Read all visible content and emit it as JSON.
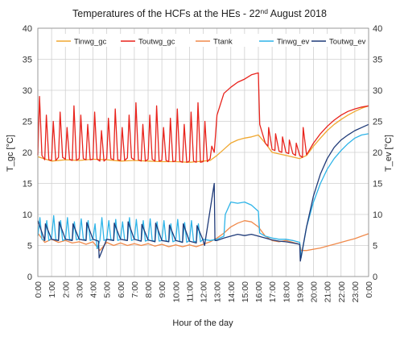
{
  "chart_data": {
    "type": "line",
    "title": "Temperatures of the HCFs at the HEs - 22",
    "title_sup": "nd",
    "title_tail": " August 2018",
    "xlabel": "Hour of the day",
    "ylabel_left": "T_gc [°C]",
    "ylabel_right": "T_ev [°C]",
    "xlim": [
      0,
      24
    ],
    "ylim": [
      0,
      40
    ],
    "y_right_lim": [
      0,
      40
    ],
    "y_ticks": [
      "0",
      "5",
      "10",
      "15",
      "20",
      "25",
      "30",
      "35",
      "40"
    ],
    "y_right_ticks": [
      "0",
      "5",
      "10",
      "15",
      "20",
      "25",
      "30",
      "35",
      "40"
    ],
    "x_ticks": [
      "0:00",
      "1:00",
      "2:00",
      "3:00",
      "4:00",
      "5:00",
      "6:00",
      "7:00",
      "8:00",
      "9:00",
      "10:00",
      "11:00",
      "12:00",
      "13:00",
      "14:00",
      "15:00",
      "16:00",
      "17:00",
      "18:00",
      "19:00",
      "20:00",
      "21:00",
      "22:00",
      "23:00",
      "0:00"
    ],
    "grid": true,
    "legend_position": "top",
    "series": [
      {
        "name": "Tinwg_gc",
        "color": "#f0a830",
        "axis": "left",
        "x": [
          0,
          1,
          2,
          3,
          4,
          5,
          6,
          7,
          8,
          9,
          10,
          11,
          12,
          12.5,
          13,
          13.5,
          14,
          14.5,
          15,
          15.5,
          16,
          16.5,
          17,
          18,
          19,
          19.5,
          20,
          20.5,
          21,
          21.5,
          22,
          22.5,
          23,
          23.5,
          24
        ],
        "y": [
          19.3,
          18.6,
          18.8,
          18.7,
          18.9,
          18.8,
          18.6,
          18.7,
          18.6,
          18.5,
          18.5,
          18.4,
          18.6,
          18.7,
          19.5,
          20.5,
          21.5,
          22.0,
          22.3,
          22.5,
          22.8,
          21.5,
          20.0,
          19.5,
          19.0,
          19.5,
          21.0,
          22.3,
          23.5,
          24.5,
          25.3,
          26.0,
          26.6,
          27.1,
          27.5
        ]
      },
      {
        "name": "Toutwg_gc",
        "color": "#e8231c",
        "axis": "left",
        "x": [
          0,
          0.12,
          0.3,
          0.5,
          0.62,
          0.8,
          1,
          1.12,
          1.3,
          1.5,
          1.62,
          1.8,
          2,
          2.12,
          2.3,
          2.5,
          2.62,
          2.8,
          3,
          3.12,
          3.3,
          3.5,
          3.62,
          3.8,
          4,
          4.12,
          4.3,
          4.5,
          4.62,
          4.8,
          5,
          5.12,
          5.3,
          5.5,
          5.62,
          5.8,
          6,
          6.12,
          6.3,
          6.5,
          6.62,
          6.8,
          7,
          7.12,
          7.3,
          7.5,
          7.62,
          7.8,
          8,
          8.12,
          8.3,
          8.5,
          8.62,
          8.8,
          9,
          9.12,
          9.3,
          9.5,
          9.62,
          9.8,
          10,
          10.12,
          10.3,
          10.5,
          10.62,
          10.8,
          11,
          11.12,
          11.3,
          11.5,
          11.62,
          11.8,
          12,
          12.12,
          12.3,
          12.5,
          12.62,
          12.8,
          13,
          13.5,
          14,
          14.5,
          15,
          15.5,
          16,
          16.1,
          16.5,
          16.7,
          16.75,
          17,
          17.2,
          17.25,
          17.5,
          17.7,
          17.75,
          18,
          18.2,
          18.25,
          18.5,
          18.7,
          18.75,
          19,
          19.2,
          19.25,
          19.5,
          20,
          20.5,
          21,
          21.5,
          22,
          22.5,
          23,
          23.5,
          24
        ],
        "y": [
          19.5,
          29,
          19.5,
          18.8,
          26,
          18.8,
          18.7,
          25,
          18.7,
          19.2,
          26.5,
          19.2,
          18.9,
          24,
          18.9,
          18.7,
          27.5,
          18.7,
          19,
          26,
          19,
          18.8,
          24.5,
          18.8,
          18.9,
          26.5,
          18.9,
          18.6,
          23.5,
          18.6,
          19,
          25.5,
          19,
          18.8,
          27,
          18.8,
          18.7,
          24,
          18.7,
          19.1,
          26,
          19.1,
          18.8,
          28,
          18.8,
          18.6,
          24.5,
          18.6,
          18.9,
          26,
          18.9,
          18.6,
          27.5,
          18.6,
          18.7,
          24,
          18.7,
          18.5,
          25.5,
          18.5,
          18.6,
          27,
          18.6,
          18.4,
          24.5,
          18.4,
          18.6,
          26.5,
          18.6,
          18.4,
          28,
          18.4,
          18.5,
          25,
          18.5,
          19,
          21,
          20,
          26,
          29.5,
          30.5,
          31.3,
          31.8,
          32.5,
          32.8,
          24.5,
          21.5,
          21.0,
          24.0,
          20.5,
          20.3,
          23.0,
          20.2,
          20.0,
          22.5,
          20.0,
          19.8,
          22.0,
          19.8,
          19.5,
          21.5,
          19.5,
          19.2,
          24.0,
          19.6,
          21.5,
          23.0,
          24.2,
          25.2,
          26.0,
          26.6,
          27.0,
          27.3,
          27.5
        ]
      },
      {
        "name": "Ttank",
        "color": "#f08a4b",
        "axis": "right",
        "x": [
          0,
          0.5,
          1,
          1.5,
          2,
          2.5,
          3,
          3.5,
          4,
          4.5,
          5,
          5.5,
          6,
          6.5,
          7,
          7.5,
          8,
          8.5,
          9,
          9.5,
          10,
          10.5,
          11,
          11.5,
          12,
          12.5,
          13,
          13.5,
          14,
          14.5,
          15,
          15.5,
          16,
          16.5,
          17,
          17.5,
          18,
          18.5,
          19,
          19.1,
          19.5,
          20,
          20.5,
          21,
          21.5,
          22,
          22.5,
          23,
          23.5,
          24
        ],
        "y": [
          7.0,
          5.5,
          6.0,
          5.5,
          5.8,
          5.4,
          5.6,
          5.2,
          5.6,
          4.2,
          5.5,
          5.0,
          5.4,
          5.0,
          5.3,
          5.0,
          5.3,
          4.9,
          5.2,
          4.8,
          5.1,
          4.8,
          5.1,
          4.8,
          5.2,
          5.6,
          6.2,
          7.0,
          8.0,
          8.6,
          9.0,
          8.8,
          8.0,
          6.5,
          5.8,
          5.6,
          5.8,
          5.5,
          5.2,
          4.2,
          4.2,
          4.4,
          4.6,
          4.9,
          5.2,
          5.5,
          5.8,
          6.1,
          6.5,
          6.9
        ]
      },
      {
        "name": "Tinwg_ev",
        "color": "#2eb4e8",
        "axis": "right",
        "x": [
          0,
          0.15,
          0.3,
          0.5,
          0.65,
          0.8,
          1,
          1.15,
          1.3,
          1.5,
          1.65,
          1.8,
          2,
          2.15,
          2.3,
          2.5,
          2.65,
          2.8,
          3,
          3.15,
          3.3,
          3.5,
          3.65,
          3.8,
          4,
          4.15,
          4.3,
          4.5,
          4.65,
          4.8,
          5,
          5.15,
          5.3,
          5.5,
          5.65,
          5.8,
          6,
          6.15,
          6.3,
          6.5,
          6.65,
          6.8,
          7,
          7.15,
          7.3,
          7.5,
          7.65,
          7.8,
          8,
          8.15,
          8.3,
          8.5,
          8.65,
          8.8,
          9,
          9.15,
          9.3,
          9.5,
          9.65,
          9.8,
          10,
          10.15,
          10.3,
          10.5,
          10.65,
          10.8,
          11,
          11.15,
          11.3,
          11.5,
          11.65,
          11.8,
          12,
          12.5,
          13,
          13.5,
          13.6,
          14,
          14.5,
          15,
          15.5,
          16,
          16.1,
          16.5,
          17,
          17.5,
          18,
          18.5,
          19,
          19.1,
          19.5,
          20,
          20.5,
          21,
          21.5,
          22,
          22.5,
          23,
          23.5,
          24
        ],
        "y": [
          6.5,
          9.5,
          6.0,
          5.8,
          9.0,
          5.8,
          6.2,
          9.8,
          6.0,
          5.8,
          9.0,
          5.8,
          6.0,
          9.5,
          6.0,
          5.9,
          8.8,
          5.9,
          6.1,
          9.3,
          6.1,
          5.8,
          9.0,
          5.8,
          6.0,
          8.5,
          4.5,
          5.8,
          9.5,
          5.8,
          6.0,
          9.0,
          6.0,
          5.8,
          9.2,
          5.8,
          6.0,
          8.8,
          5.9,
          5.8,
          9.5,
          5.8,
          6.0,
          9.2,
          5.8,
          5.7,
          9.0,
          5.7,
          5.9,
          9.3,
          5.8,
          5.7,
          8.8,
          5.7,
          5.8,
          9.0,
          5.8,
          5.6,
          8.5,
          5.6,
          5.8,
          9.2,
          5.7,
          5.5,
          8.7,
          5.5,
          5.8,
          9.0,
          5.7,
          5.6,
          8.5,
          5.6,
          6.0,
          5.8,
          6.0,
          6.5,
          10.0,
          12.0,
          11.8,
          12.0,
          11.5,
          10.5,
          7.0,
          6.5,
          6.2,
          6.0,
          6.0,
          5.8,
          5.5,
          3.0,
          8.0,
          12.0,
          15.0,
          17.3,
          19.0,
          20.3,
          21.4,
          22.3,
          22.8,
          23.0
        ]
      },
      {
        "name": "Toutwg_ev",
        "color": "#1f3a78",
        "axis": "right",
        "x": [
          0,
          0.5,
          0.55,
          1,
          1.5,
          1.55,
          2,
          2.5,
          2.55,
          3,
          3.5,
          3.55,
          4,
          4.4,
          4.45,
          5,
          5.5,
          5.55,
          6,
          6.5,
          6.55,
          7,
          7.5,
          7.55,
          8,
          8.5,
          8.55,
          9,
          9.5,
          9.55,
          10,
          10.5,
          10.55,
          11,
          11.5,
          11.55,
          12,
          12.1,
          12.8,
          12.85,
          13,
          13.5,
          14,
          14.5,
          15,
          15.5,
          16,
          16.5,
          17,
          17.5,
          18,
          18.5,
          19,
          19.05,
          19.5,
          20,
          20.5,
          21,
          21.5,
          22,
          22.5,
          23,
          23.5,
          24
        ],
        "y": [
          9.0,
          5.8,
          8.5,
          6.0,
          5.8,
          8.8,
          6.0,
          5.8,
          8.5,
          6.0,
          5.8,
          8.7,
          6.0,
          5.7,
          3.0,
          6.0,
          5.8,
          8.6,
          6.0,
          5.8,
          8.8,
          6.0,
          5.7,
          8.4,
          5.9,
          5.6,
          8.6,
          5.8,
          5.6,
          8.3,
          5.8,
          5.5,
          8.5,
          5.7,
          5.4,
          8.2,
          5.8,
          5.0,
          15.0,
          5.8,
          5.8,
          6.2,
          6.5,
          6.8,
          6.6,
          6.8,
          6.5,
          6.2,
          5.9,
          5.7,
          5.6,
          5.4,
          5.2,
          2.5,
          8.0,
          13.0,
          16.5,
          19.0,
          20.8,
          22.0,
          22.8,
          23.5,
          24.0,
          24.5
        ]
      }
    ]
  }
}
